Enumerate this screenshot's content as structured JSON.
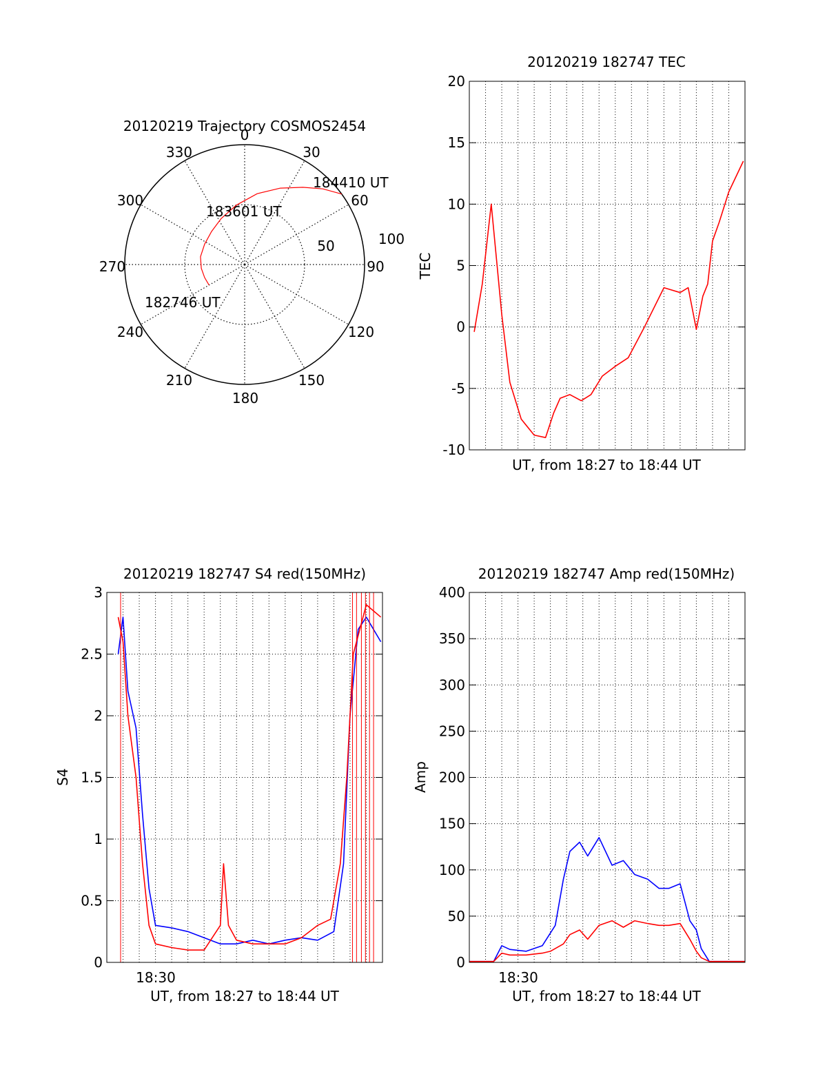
{
  "colors": {
    "red": "#ff0000",
    "blue": "#0000ff",
    "axis": "#000000",
    "grid": "#000000"
  },
  "chart_data": [
    {
      "id": "polar",
      "type": "polar-trajectory",
      "title": "20120219 Trajectory COSMOS2454",
      "azimuth_labels": [
        "0",
        "30",
        "60",
        "90",
        "120",
        "150",
        "180",
        "210",
        "240",
        "270",
        "300",
        "330"
      ],
      "radial_labels": [
        "50",
        "100"
      ],
      "rlim": [
        0,
        100
      ],
      "trajectory": [
        [
          240,
          34.3
        ],
        [
          252,
          35.1
        ],
        [
          265,
          36.3
        ],
        [
          280,
          37.4
        ],
        [
          297,
          37.5
        ],
        [
          315,
          39.0
        ],
        [
          333,
          43.1
        ],
        [
          352,
          50.0
        ],
        [
          10,
          60.0
        ],
        [
          25,
          70.3
        ],
        [
          37,
          80.7
        ],
        [
          46,
          90.8
        ],
        [
          54,
          100.0
        ]
      ],
      "annotations": [
        "182746 UT",
        "183601 UT",
        "184410 UT"
      ]
    },
    {
      "id": "tec",
      "type": "line",
      "title": "20120219 182747 TEC",
      "xlabel": "UT, from 18:27 to 18:44 UT",
      "ylabel": "TEC",
      "xlim": [
        0,
        17
      ],
      "ylim": [
        -10,
        20
      ],
      "yticks": [
        "-10",
        "-5",
        "0",
        "5",
        "10",
        "15",
        "20"
      ],
      "grid": true,
      "series": [
        {
          "color": "red",
          "x": [
            0.3,
            0.8,
            1.35,
            2.0,
            2.5,
            3.2,
            4.0,
            4.7,
            5.2,
            5.6,
            6.2,
            6.9,
            7.5,
            8.2,
            9.0,
            9.8,
            10.8,
            12.0,
            13.0,
            13.5,
            14.0,
            14.4,
            14.7,
            15.0,
            15.4,
            16.0,
            16.9
          ],
          "y": [
            -0.4,
            3.5,
            10.0,
            1.0,
            -4.5,
            -7.5,
            -8.8,
            -9.0,
            -7.0,
            -5.8,
            -5.5,
            -6.0,
            -5.5,
            -4.0,
            -3.2,
            -2.5,
            0.0,
            3.2,
            2.8,
            3.2,
            -0.2,
            2.5,
            3.5,
            7.0,
            8.5,
            11.0,
            13.5
          ]
        }
      ]
    },
    {
      "id": "s4",
      "type": "line",
      "title": "20120219 182747 S4 red(150MHz)",
      "xlabel": "UT, from 18:27 to 18:44 UT",
      "ylabel": "S4",
      "xlim": [
        0,
        17
      ],
      "ylim": [
        0,
        3
      ],
      "yticks": [
        "0",
        "0.5",
        "1",
        "1.5",
        "2",
        "2.5",
        "3"
      ],
      "xtick_label": "18:30",
      "grid": true,
      "series": [
        {
          "color": "blue",
          "x": [
            0.7,
            1.0,
            1.3,
            1.8,
            2.2,
            2.6,
            3.0,
            4.0,
            5.0,
            6.0,
            7.0,
            8.0,
            9.0,
            10.0,
            11.0,
            12.0,
            13.0,
            14.0,
            14.6,
            15.0,
            15.5,
            16.0,
            16.9
          ],
          "y": [
            2.5,
            2.8,
            2.2,
            1.9,
            1.2,
            0.6,
            0.3,
            0.28,
            0.25,
            0.2,
            0.15,
            0.15,
            0.18,
            0.15,
            0.18,
            0.2,
            0.18,
            0.25,
            0.8,
            2.0,
            2.7,
            2.8,
            2.6
          ]
        },
        {
          "color": "red",
          "x": [
            0.7,
            1.0,
            1.3,
            1.8,
            2.2,
            2.6,
            3.0,
            4.0,
            5.0,
            6.0,
            7.0,
            7.2,
            7.5,
            8.0,
            9.0,
            10.0,
            11.0,
            12.0,
            13.0,
            13.8,
            14.4,
            14.8,
            15.2,
            16.0,
            16.9
          ],
          "y": [
            2.8,
            2.6,
            2.0,
            1.5,
            0.8,
            0.3,
            0.15,
            0.12,
            0.1,
            0.1,
            0.3,
            0.8,
            0.3,
            0.18,
            0.15,
            0.15,
            0.15,
            0.2,
            0.3,
            0.35,
            0.8,
            1.5,
            2.5,
            2.9,
            2.8
          ]
        }
      ]
    },
    {
      "id": "amp",
      "type": "line",
      "title": "20120219 182747 Amp red(150MHz)",
      "xlabel": "UT, from 18:27 to 18:44 UT",
      "ylabel": "Amp",
      "xlim": [
        0,
        17
      ],
      "ylim": [
        0,
        400
      ],
      "yticks": [
        "0",
        "50",
        "100",
        "150",
        "200",
        "250",
        "300",
        "350",
        "400"
      ],
      "xtick_label": "18:30",
      "grid": true,
      "series": [
        {
          "color": "blue",
          "x": [
            0,
            1.5,
            2.0,
            2.5,
            3.5,
            4.5,
            5.3,
            5.8,
            6.2,
            6.8,
            7.3,
            8.0,
            8.8,
            9.5,
            10.2,
            11.0,
            11.7,
            12.3,
            13.0,
            13.6,
            14.0,
            14.3,
            14.8,
            17.0
          ],
          "y": [
            1,
            1,
            18,
            14,
            12,
            18,
            40,
            90,
            120,
            130,
            115,
            135,
            105,
            110,
            95,
            90,
            80,
            80,
            85,
            45,
            35,
            15,
            1,
            1
          ]
        },
        {
          "color": "red",
          "x": [
            0,
            1.5,
            2.0,
            2.5,
            3.5,
            4.5,
            5.0,
            5.8,
            6.2,
            6.8,
            7.3,
            8.0,
            8.8,
            9.5,
            10.2,
            11.0,
            11.7,
            12.3,
            13.0,
            13.6,
            14.0,
            14.3,
            14.8,
            17.0
          ],
          "y": [
            1,
            1,
            10,
            8,
            8,
            10,
            12,
            20,
            30,
            35,
            25,
            40,
            45,
            38,
            45,
            42,
            40,
            40,
            42,
            25,
            12,
            5,
            1,
            1
          ]
        }
      ]
    }
  ]
}
